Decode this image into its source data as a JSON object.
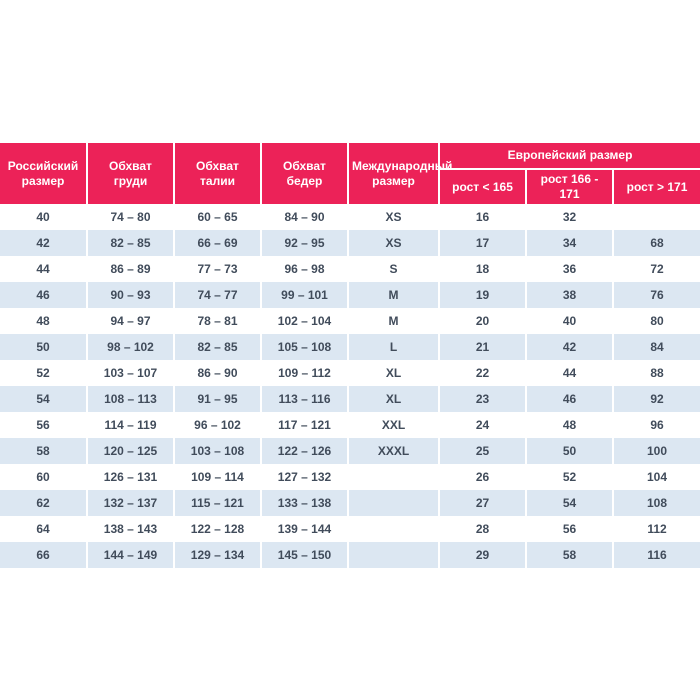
{
  "chart_data": {
    "type": "table",
    "headers": {
      "russian_size": "Российский размер",
      "chest": "Обхват груди",
      "waist": "Обхват талии",
      "hips": "Обхват бедер",
      "international_size": "Международный размер",
      "european_size_group": "Европейский размер",
      "height_lt_165": "рост < 165",
      "height_166_171": "рост 166 - 171",
      "height_gt_171": "рост > 171"
    },
    "rows": [
      [
        "40",
        "74 – 80",
        "60 – 65",
        "84 – 90",
        "XS",
        "16",
        "32",
        ""
      ],
      [
        "42",
        "82 – 85",
        "66 – 69",
        "92 – 95",
        "XS",
        "17",
        "34",
        "68"
      ],
      [
        "44",
        "86 – 89",
        "77 – 73",
        "96 – 98",
        "S",
        "18",
        "36",
        "72"
      ],
      [
        "46",
        "90 – 93",
        "74 – 77",
        "99 – 101",
        "M",
        "19",
        "38",
        "76"
      ],
      [
        "48",
        "94 – 97",
        "78 – 81",
        "102 – 104",
        "M",
        "20",
        "40",
        "80"
      ],
      [
        "50",
        "98 – 102",
        "82 – 85",
        "105 – 108",
        "L",
        "21",
        "42",
        "84"
      ],
      [
        "52",
        "103 – 107",
        "86 – 90",
        "109 – 112",
        "XL",
        "22",
        "44",
        "88"
      ],
      [
        "54",
        "108 – 113",
        "91 – 95",
        "113 – 116",
        "XL",
        "23",
        "46",
        "92"
      ],
      [
        "56",
        "114 – 119",
        "96 – 102",
        "117 – 121",
        "XXL",
        "24",
        "48",
        "96"
      ],
      [
        "58",
        "120 – 125",
        "103 – 108",
        "122 – 126",
        "XXXL",
        "25",
        "50",
        "100"
      ],
      [
        "60",
        "126 – 131",
        "109 – 114",
        "127 – 132",
        "",
        "26",
        "52",
        "104"
      ],
      [
        "62",
        "132 – 137",
        "115 – 121",
        "133 – 138",
        "",
        "27",
        "54",
        "108"
      ],
      [
        "64",
        "138 – 143",
        "122 – 128",
        "139 – 144",
        "",
        "28",
        "56",
        "112"
      ],
      [
        "66",
        "144 – 149",
        "129 – 134",
        "145 – 150",
        "",
        "29",
        "58",
        "116"
      ]
    ],
    "layout": {
      "stripe": "even rows shaded",
      "grid": "white 2px dividers",
      "text_align": "center"
    }
  },
  "colors": {
    "header_bg": "#EC2258",
    "header_text": "#FFFFFF",
    "row_stripe": "#DCE7F2",
    "row_plain": "#FFFFFF",
    "cell_text": "#414C5B",
    "page_bg": "#FFFFFF"
  }
}
